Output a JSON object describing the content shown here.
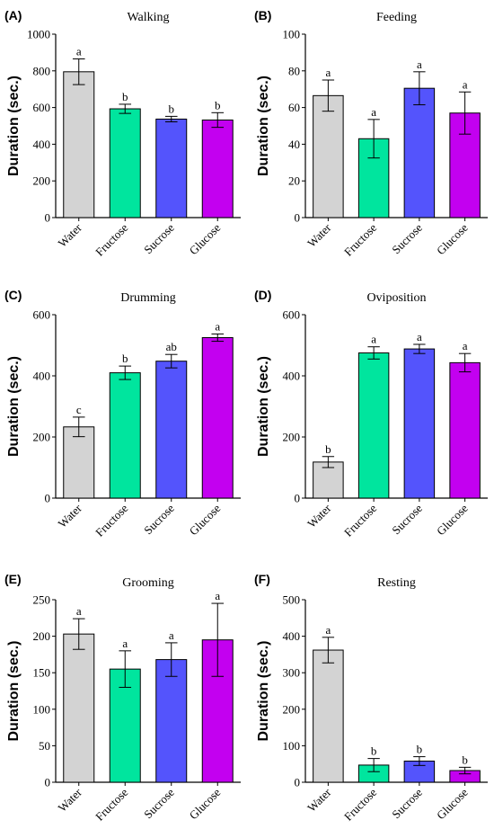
{
  "colors": {
    "Water": "#d3d3d3",
    "Fructose": "#00e59e",
    "Sucrose": "#5454fc",
    "Glucose": "#c300f0"
  },
  "chart_data": [
    {
      "type": "bar",
      "panel": "(A)",
      "title": "Walking",
      "ylabel": "Duration (sec.)",
      "categories": [
        "Water",
        "Fructose",
        "Sucrose",
        "Glucose"
      ],
      "values": [
        795,
        593,
        537,
        532
      ],
      "errors": [
        70,
        25,
        15,
        40
      ],
      "letters": [
        "a",
        "b",
        "b",
        "b"
      ],
      "ylim": [
        0,
        1000
      ],
      "yticks": [
        "0",
        "200",
        "400",
        "600",
        "800",
        "1000"
      ]
    },
    {
      "type": "bar",
      "panel": "(B)",
      "title": "Feeding",
      "ylabel": "Duration (sec.)",
      "categories": [
        "Water",
        "Fructose",
        "Sucrose",
        "Glucose"
      ],
      "values": [
        66.5,
        43,
        70.5,
        57
      ],
      "errors": [
        8.5,
        10.5,
        9,
        11.5
      ],
      "letters": [
        "a",
        "a",
        "a",
        "a"
      ],
      "ylim": [
        0,
        100
      ],
      "yticks": [
        "0",
        "20",
        "40",
        "60",
        "80",
        "100"
      ]
    },
    {
      "type": "bar",
      "panel": "(C)",
      "title": "Drumming",
      "ylabel": "Duration (sec.)",
      "categories": [
        "Water",
        "Fructose",
        "Sucrose",
        "Glucose"
      ],
      "values": [
        233,
        410,
        448,
        525
      ],
      "errors": [
        32,
        22,
        22,
        12
      ],
      "letters": [
        "c",
        "b",
        "ab",
        "a"
      ],
      "ylim": [
        0,
        600
      ],
      "yticks": [
        "0",
        "200",
        "400",
        "600"
      ]
    },
    {
      "type": "bar",
      "panel": "(D)",
      "title": "Oviposition",
      "ylabel": "Duration (sec.)",
      "categories": [
        "Water",
        "Fructose",
        "Sucrose",
        "Glucose"
      ],
      "values": [
        118,
        475,
        488,
        443
      ],
      "errors": [
        18,
        20,
        15,
        30
      ],
      "letters": [
        "b",
        "a",
        "a",
        "a"
      ],
      "ylim": [
        0,
        600
      ],
      "yticks": [
        "0",
        "200",
        "400",
        "600"
      ]
    },
    {
      "type": "bar",
      "panel": "(E)",
      "title": "Grooming",
      "ylabel": "Duration (sec.)",
      "categories": [
        "Water",
        "Fructose",
        "Sucrose",
        "Glucose"
      ],
      "values": [
        203,
        155,
        168,
        195
      ],
      "errors": [
        21,
        25,
        23,
        50
      ],
      "letters": [
        "a",
        "a",
        "a",
        "a"
      ],
      "ylim": [
        0,
        250
      ],
      "yticks": [
        "0",
        "50",
        "100",
        "150",
        "200",
        "250"
      ]
    },
    {
      "type": "bar",
      "panel": "(F)",
      "title": "Resting",
      "ylabel": "Duration (sec.)",
      "categories": [
        "Water",
        "Fructose",
        "Sucrose",
        "Glucose"
      ],
      "values": [
        362,
        47,
        58,
        32
      ],
      "errors": [
        35,
        18,
        12,
        9
      ],
      "letters": [
        "a",
        "b",
        "b",
        "b"
      ],
      "ylim": [
        0,
        500
      ],
      "yticks": [
        "0",
        "100",
        "200",
        "300",
        "400",
        "500"
      ]
    }
  ]
}
